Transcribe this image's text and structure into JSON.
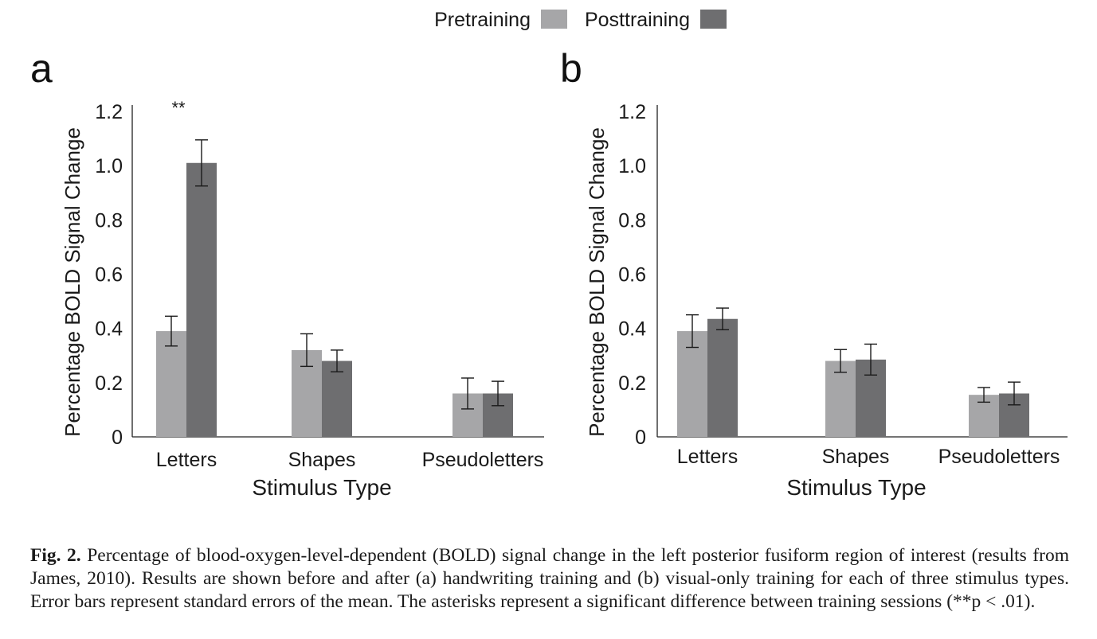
{
  "legend": {
    "placement": "top-center",
    "items": [
      {
        "label": "Pretraining",
        "color": "#a6a6a8"
      },
      {
        "label": "Posttraining",
        "color": "#6e6e70"
      }
    ]
  },
  "chart_data": [
    {
      "panel": "a",
      "type": "bar",
      "categories": [
        "Letters",
        "Shapes",
        "Pseudoletters"
      ],
      "series": [
        {
          "name": "Pretraining",
          "values": [
            0.39,
            0.32,
            0.16
          ],
          "errors": [
            0.055,
            0.06,
            0.057
          ]
        },
        {
          "name": "Posttraining",
          "values": [
            1.01,
            0.28,
            0.16
          ],
          "errors": [
            0.085,
            0.04,
            0.045
          ]
        }
      ],
      "ylabel": "Percentage BOLD Signal Change",
      "xlabel": "Stimulus Type",
      "ylim": [
        0,
        1.2
      ],
      "yticks": [
        "0",
        "0.2",
        "0.4",
        "0.6",
        "0.8",
        "1.0",
        "1.2"
      ],
      "annotations": [
        {
          "category": "Letters",
          "text": "**"
        }
      ],
      "grid": false
    },
    {
      "panel": "b",
      "type": "bar",
      "categories": [
        "Letters",
        "Shapes",
        "Pseudoletters"
      ],
      "series": [
        {
          "name": "Pretraining",
          "values": [
            0.39,
            0.28,
            0.155
          ],
          "errors": [
            0.06,
            0.042,
            0.027
          ]
        },
        {
          "name": "Posttraining",
          "values": [
            0.435,
            0.285,
            0.16
          ],
          "errors": [
            0.04,
            0.057,
            0.042
          ]
        }
      ],
      "ylabel": "Percentage BOLD Signal Change",
      "xlabel": "Stimulus Type",
      "ylim": [
        0,
        1.2
      ],
      "yticks": [
        "0",
        "0.2",
        "0.4",
        "0.6",
        "0.8",
        "1.0",
        "1.2"
      ],
      "annotations": [],
      "grid": false
    }
  ],
  "caption": {
    "label": "Fig. 2.",
    "text": " Percentage of blood-oxygen-level-dependent (BOLD) signal change in the left posterior fusiform region of interest (results from James, 2010). Results are shown before and after (a) handwriting training and (b) visual-only training for each of three stimulus types. Error bars represent standard errors of the mean. The asterisks represent a significant difference between training sessions (**p < .01)."
  }
}
